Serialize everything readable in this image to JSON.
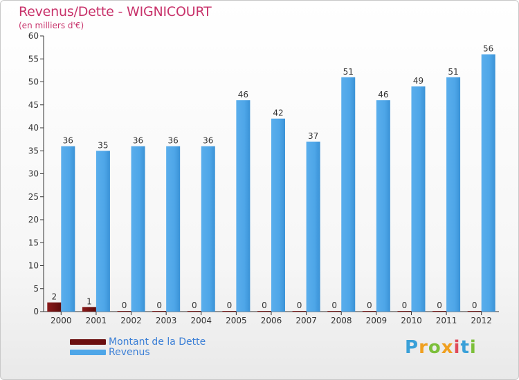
{
  "title": "Revenus/Dette - WIGNICOURT",
  "subtitle": "(en milliers d'€)",
  "brand": "Proxiti",
  "colors": {
    "debt": "#7a1414",
    "revenue": "#4ea6e8",
    "title": "#c8336b",
    "axis": "#333333"
  },
  "chart_data": {
    "type": "bar",
    "categories": [
      "2000",
      "2001",
      "2002",
      "2003",
      "2004",
      "2005",
      "2006",
      "2007",
      "2008",
      "2009",
      "2010",
      "2011",
      "2012"
    ],
    "series": [
      {
        "name": "Montant de la Dette",
        "values": [
          2,
          1,
          0,
          0,
          0,
          0,
          0,
          0,
          0,
          0,
          0,
          0,
          0
        ]
      },
      {
        "name": "Revenus",
        "values": [
          36,
          35,
          36,
          36,
          36,
          46,
          42,
          37,
          51,
          46,
          49,
          51,
          56
        ]
      }
    ],
    "yticks": [
      0,
      5,
      10,
      15,
      20,
      25,
      30,
      35,
      40,
      45,
      50,
      55,
      60
    ],
    "ylim": [
      0,
      60
    ],
    "title": "Revenus/Dette - WIGNICOURT",
    "xlabel": "",
    "ylabel": "(en milliers d'€)",
    "grid": false,
    "legend": "bottom-left"
  }
}
